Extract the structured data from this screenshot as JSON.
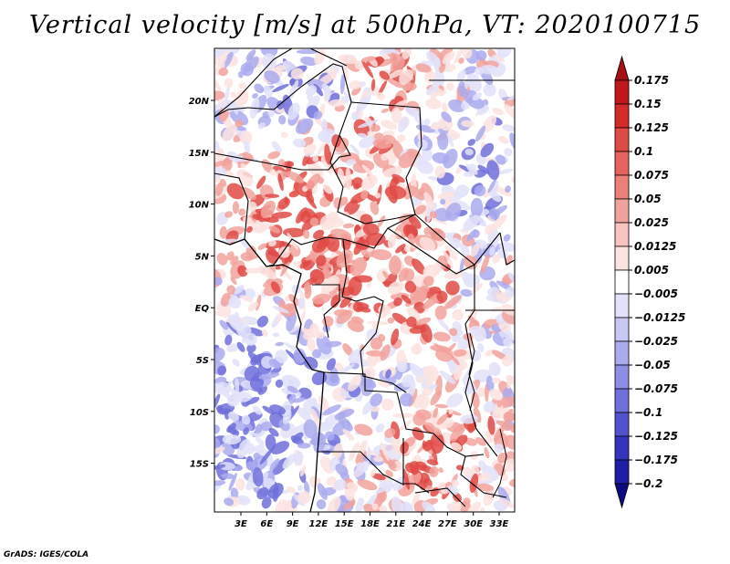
{
  "title": "Vertical velocity [m/s] at 500hPa, VT: 2020100715",
  "footer": "GrADS: IGES/COLA",
  "lat_ticks": [
    "20N",
    "15N",
    "10N",
    "5N",
    "EQ",
    "5S",
    "10S",
    "15S"
  ],
  "lon_ticks": [
    "3E",
    "6E",
    "9E",
    "12E",
    "15E",
    "18E",
    "21E",
    "24E",
    "27E",
    "30E",
    "33E"
  ],
  "colorbar": {
    "labels": [
      "0.175",
      "0.15",
      "0.125",
      "0.1",
      "0.075",
      "0.05",
      "0.025",
      "0.0125",
      "0.005",
      "−0.005",
      "−0.0125",
      "−0.025",
      "−0.05",
      "−0.075",
      "−0.1",
      "−0.125",
      "−0.175",
      "−0.2"
    ],
    "colors": [
      "#a50f15",
      "#c0181c",
      "#d42a28",
      "#e04a45",
      "#e6625c",
      "#ec8078",
      "#f2a29c",
      "#f7c3bf",
      "#fbe3e1",
      "#ffffff",
      "#e2e2fa",
      "#c8c8f4",
      "#aaaaee",
      "#8e8ee6",
      "#7070dc",
      "#5252cf",
      "#3434bf",
      "#1e1ea8",
      "#0c0c80"
    ]
  },
  "map": {
    "lat_range": [
      -20,
      24.5
    ],
    "lon_range": [
      0,
      35
    ],
    "field_colors": {
      "strong_pos": "#e04a45",
      "pos": "#f2a29c",
      "weak_pos": "#fbe3e1",
      "weak_neg": "#e2e2fa",
      "neg": "#aaaaee",
      "strong_neg": "#7070dc"
    }
  }
}
